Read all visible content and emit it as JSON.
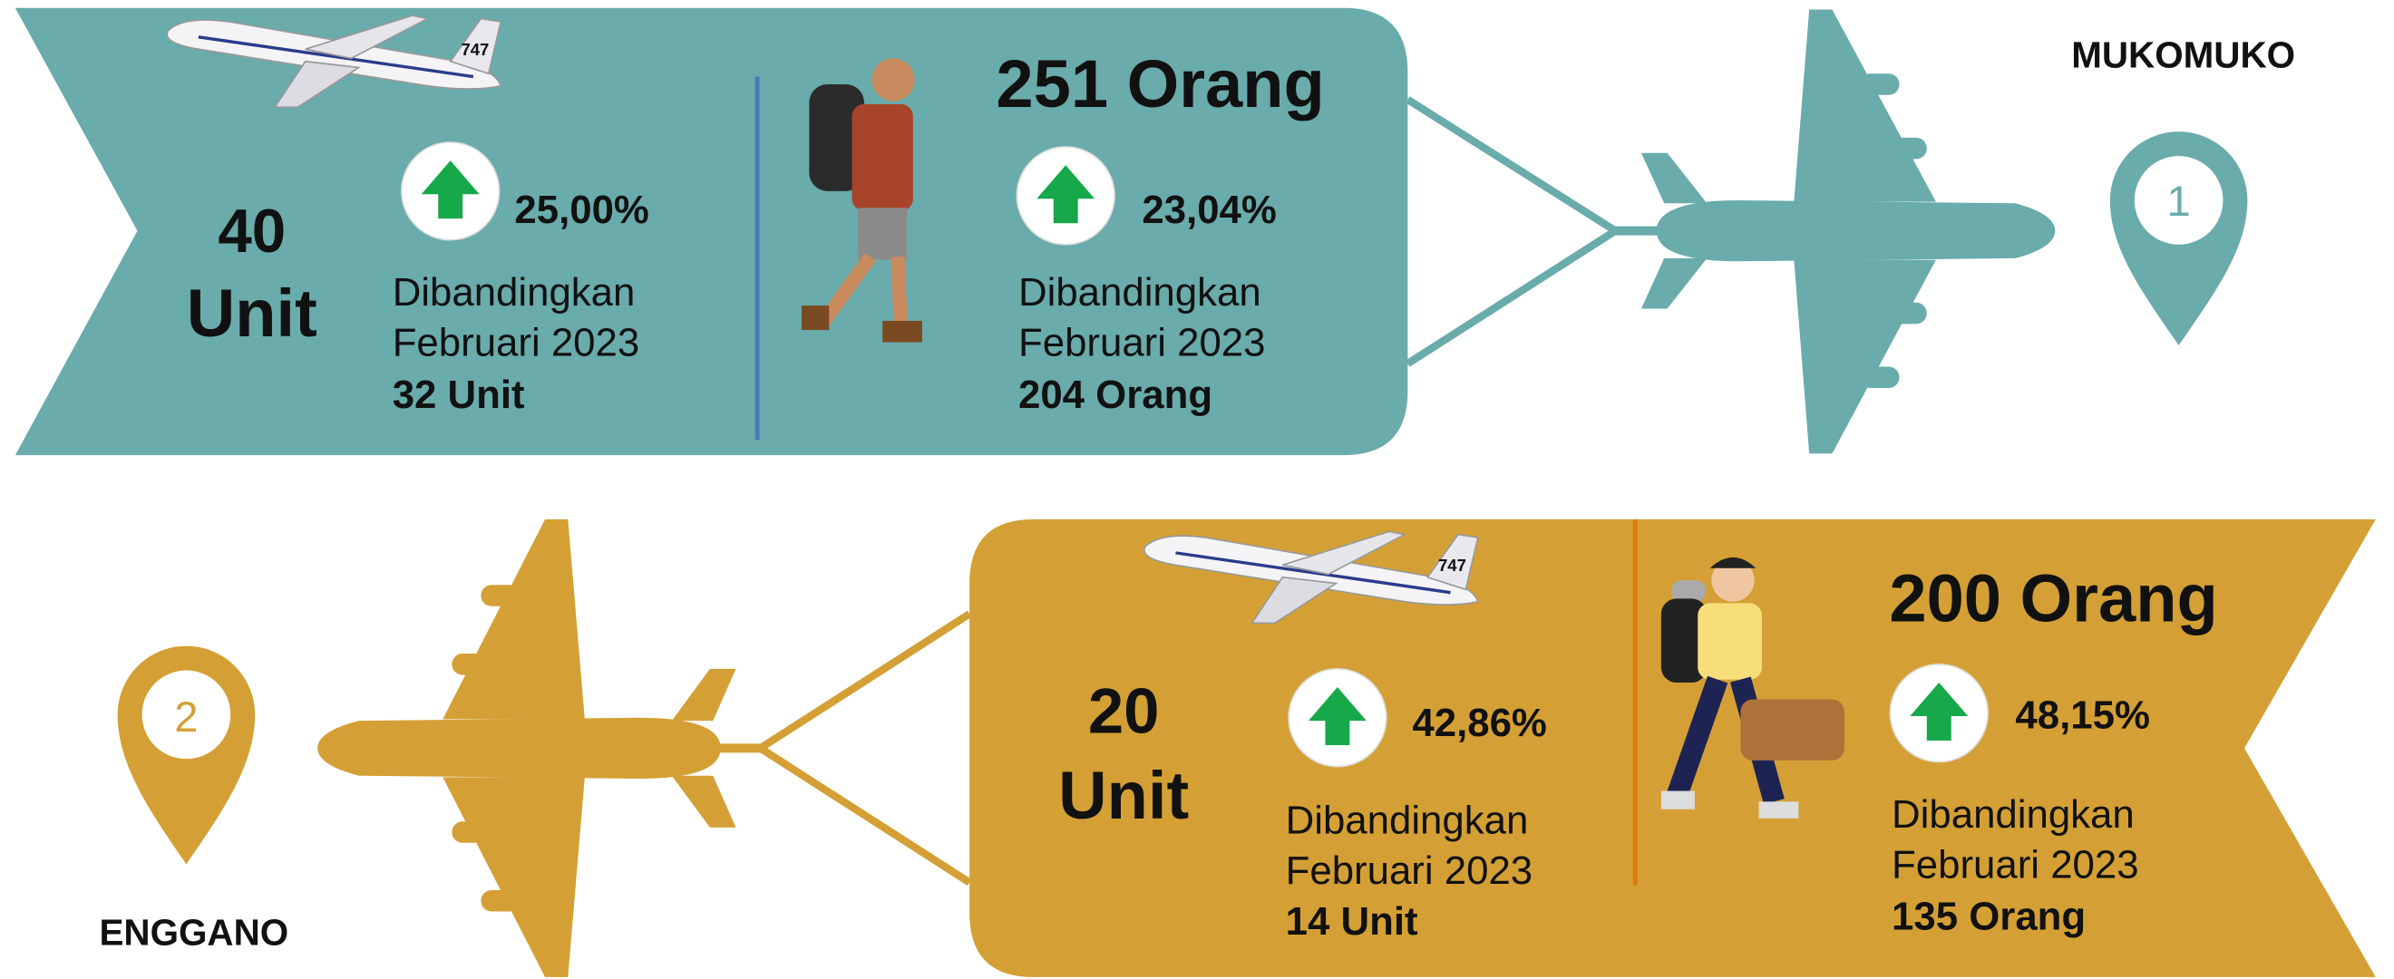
{
  "sections": [
    {
      "location": "MUKOMUKO",
      "marker": "1",
      "aircraft": {
        "value": "40",
        "unit": "Unit",
        "change": "25,00%",
        "comparison": "Dibandingkan",
        "period": "Februari 2023",
        "previous": "32 Unit"
      },
      "passengers": {
        "value": "251 Orang",
        "change": "23,04%",
        "comparison": "Dibandingkan",
        "period": "Februari 2023",
        "previous": "204 Orang"
      }
    },
    {
      "location": "ENGGANO",
      "marker": "2",
      "aircraft": {
        "value": "20",
        "unit": "Unit",
        "change": "42,86%",
        "comparison": "Dibandingkan",
        "period": "Februari 2023",
        "previous": "14 Unit"
      },
      "passengers": {
        "value": "200 Orang",
        "change": "48,15%",
        "comparison": "Dibandingkan",
        "period": "Februari 2023",
        "previous": "135 Orang"
      }
    }
  ]
}
